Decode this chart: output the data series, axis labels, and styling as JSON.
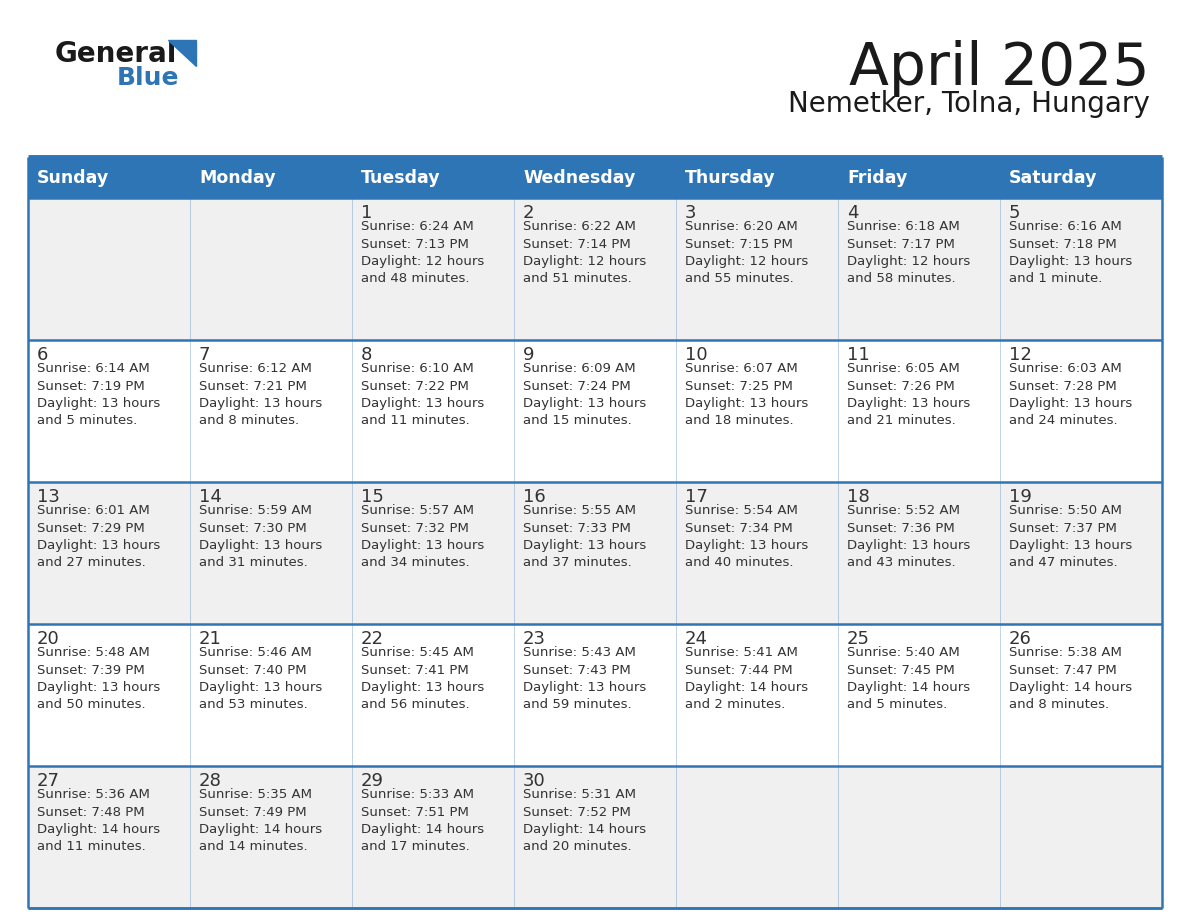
{
  "title": "April 2025",
  "subtitle": "Nemetker, Tolna, Hungary",
  "header_color": "#2E75B6",
  "header_text_color": "#FFFFFF",
  "cell_bg_odd": "#F0F0F0",
  "cell_bg_even": "#FFFFFF",
  "day_names": [
    "Sunday",
    "Monday",
    "Tuesday",
    "Wednesday",
    "Thursday",
    "Friday",
    "Saturday"
  ],
  "text_color": "#333333",
  "line_color": "#2E75B6",
  "logo_general_color": "#1a1a1a",
  "logo_blue_color": "#2E75B6",
  "weeks": [
    [
      {
        "day": "",
        "info": ""
      },
      {
        "day": "",
        "info": ""
      },
      {
        "day": "1",
        "info": "Sunrise: 6:24 AM\nSunset: 7:13 PM\nDaylight: 12 hours\nand 48 minutes."
      },
      {
        "day": "2",
        "info": "Sunrise: 6:22 AM\nSunset: 7:14 PM\nDaylight: 12 hours\nand 51 minutes."
      },
      {
        "day": "3",
        "info": "Sunrise: 6:20 AM\nSunset: 7:15 PM\nDaylight: 12 hours\nand 55 minutes."
      },
      {
        "day": "4",
        "info": "Sunrise: 6:18 AM\nSunset: 7:17 PM\nDaylight: 12 hours\nand 58 minutes."
      },
      {
        "day": "5",
        "info": "Sunrise: 6:16 AM\nSunset: 7:18 PM\nDaylight: 13 hours\nand 1 minute."
      }
    ],
    [
      {
        "day": "6",
        "info": "Sunrise: 6:14 AM\nSunset: 7:19 PM\nDaylight: 13 hours\nand 5 minutes."
      },
      {
        "day": "7",
        "info": "Sunrise: 6:12 AM\nSunset: 7:21 PM\nDaylight: 13 hours\nand 8 minutes."
      },
      {
        "day": "8",
        "info": "Sunrise: 6:10 AM\nSunset: 7:22 PM\nDaylight: 13 hours\nand 11 minutes."
      },
      {
        "day": "9",
        "info": "Sunrise: 6:09 AM\nSunset: 7:24 PM\nDaylight: 13 hours\nand 15 minutes."
      },
      {
        "day": "10",
        "info": "Sunrise: 6:07 AM\nSunset: 7:25 PM\nDaylight: 13 hours\nand 18 minutes."
      },
      {
        "day": "11",
        "info": "Sunrise: 6:05 AM\nSunset: 7:26 PM\nDaylight: 13 hours\nand 21 minutes."
      },
      {
        "day": "12",
        "info": "Sunrise: 6:03 AM\nSunset: 7:28 PM\nDaylight: 13 hours\nand 24 minutes."
      }
    ],
    [
      {
        "day": "13",
        "info": "Sunrise: 6:01 AM\nSunset: 7:29 PM\nDaylight: 13 hours\nand 27 minutes."
      },
      {
        "day": "14",
        "info": "Sunrise: 5:59 AM\nSunset: 7:30 PM\nDaylight: 13 hours\nand 31 minutes."
      },
      {
        "day": "15",
        "info": "Sunrise: 5:57 AM\nSunset: 7:32 PM\nDaylight: 13 hours\nand 34 minutes."
      },
      {
        "day": "16",
        "info": "Sunrise: 5:55 AM\nSunset: 7:33 PM\nDaylight: 13 hours\nand 37 minutes."
      },
      {
        "day": "17",
        "info": "Sunrise: 5:54 AM\nSunset: 7:34 PM\nDaylight: 13 hours\nand 40 minutes."
      },
      {
        "day": "18",
        "info": "Sunrise: 5:52 AM\nSunset: 7:36 PM\nDaylight: 13 hours\nand 43 minutes."
      },
      {
        "day": "19",
        "info": "Sunrise: 5:50 AM\nSunset: 7:37 PM\nDaylight: 13 hours\nand 47 minutes."
      }
    ],
    [
      {
        "day": "20",
        "info": "Sunrise: 5:48 AM\nSunset: 7:39 PM\nDaylight: 13 hours\nand 50 minutes."
      },
      {
        "day": "21",
        "info": "Sunrise: 5:46 AM\nSunset: 7:40 PM\nDaylight: 13 hours\nand 53 minutes."
      },
      {
        "day": "22",
        "info": "Sunrise: 5:45 AM\nSunset: 7:41 PM\nDaylight: 13 hours\nand 56 minutes."
      },
      {
        "day": "23",
        "info": "Sunrise: 5:43 AM\nSunset: 7:43 PM\nDaylight: 13 hours\nand 59 minutes."
      },
      {
        "day": "24",
        "info": "Sunrise: 5:41 AM\nSunset: 7:44 PM\nDaylight: 14 hours\nand 2 minutes."
      },
      {
        "day": "25",
        "info": "Sunrise: 5:40 AM\nSunset: 7:45 PM\nDaylight: 14 hours\nand 5 minutes."
      },
      {
        "day": "26",
        "info": "Sunrise: 5:38 AM\nSunset: 7:47 PM\nDaylight: 14 hours\nand 8 minutes."
      }
    ],
    [
      {
        "day": "27",
        "info": "Sunrise: 5:36 AM\nSunset: 7:48 PM\nDaylight: 14 hours\nand 11 minutes."
      },
      {
        "day": "28",
        "info": "Sunrise: 5:35 AM\nSunset: 7:49 PM\nDaylight: 14 hours\nand 14 minutes."
      },
      {
        "day": "29",
        "info": "Sunrise: 5:33 AM\nSunset: 7:51 PM\nDaylight: 14 hours\nand 17 minutes."
      },
      {
        "day": "30",
        "info": "Sunrise: 5:31 AM\nSunset: 7:52 PM\nDaylight: 14 hours\nand 20 minutes."
      },
      {
        "day": "",
        "info": ""
      },
      {
        "day": "",
        "info": ""
      },
      {
        "day": "",
        "info": ""
      }
    ]
  ]
}
